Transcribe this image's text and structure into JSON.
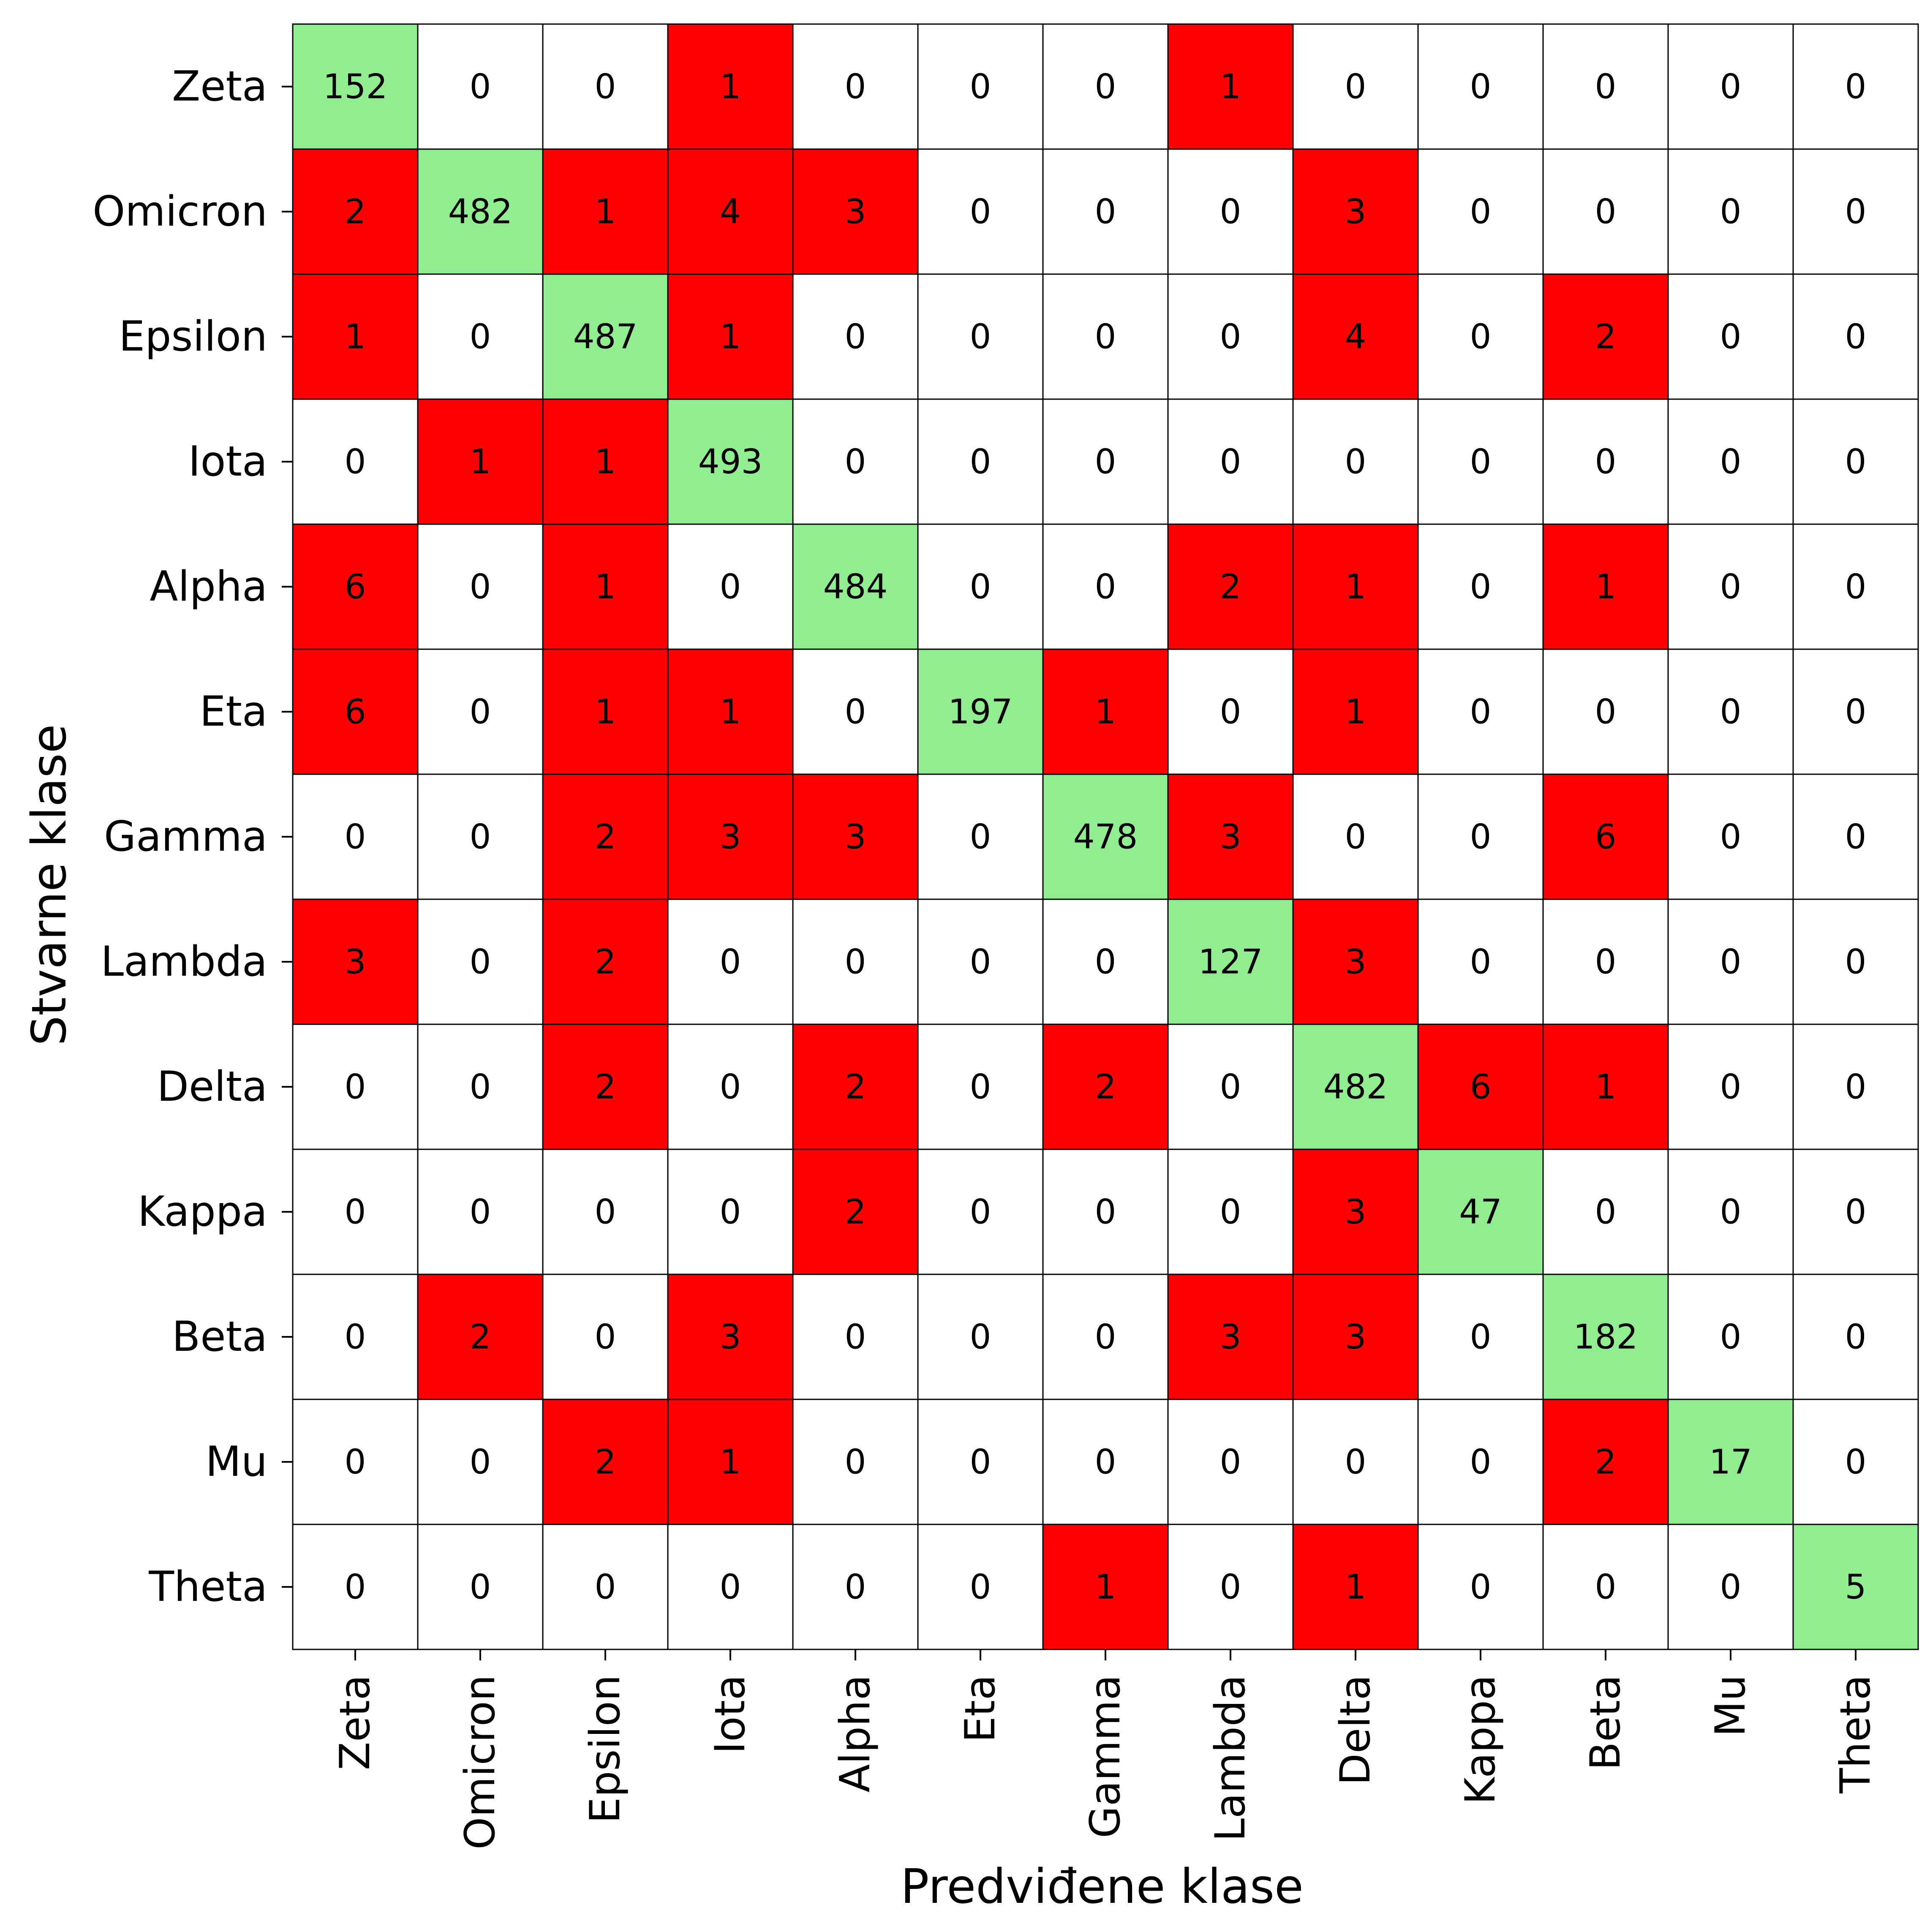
{
  "chart_data": {
    "type": "heatmap",
    "title": "",
    "xlabel": "Predviđene klase",
    "ylabel": "Stvarne klase",
    "x_categories": [
      "Zeta",
      "Omicron",
      "Epsilon",
      "Iota",
      "Alpha",
      "Eta",
      "Gamma",
      "Lambda",
      "Delta",
      "Kappa",
      "Beta",
      "Mu",
      "Theta"
    ],
    "y_categories": [
      "Zeta",
      "Omicron",
      "Epsilon",
      "Iota",
      "Alpha",
      "Eta",
      "Gamma",
      "Lambda",
      "Delta",
      "Kappa",
      "Beta",
      "Mu",
      "Theta"
    ],
    "values": [
      [
        152,
        0,
        0,
        1,
        0,
        0,
        0,
        1,
        0,
        0,
        0,
        0,
        0
      ],
      [
        2,
        482,
        1,
        4,
        3,
        0,
        0,
        0,
        3,
        0,
        0,
        0,
        0
      ],
      [
        1,
        0,
        487,
        1,
        0,
        0,
        0,
        0,
        4,
        0,
        2,
        0,
        0
      ],
      [
        0,
        1,
        1,
        493,
        0,
        0,
        0,
        0,
        0,
        0,
        0,
        0,
        0
      ],
      [
        6,
        0,
        1,
        0,
        484,
        0,
        0,
        2,
        1,
        0,
        1,
        0,
        0
      ],
      [
        6,
        0,
        1,
        1,
        0,
        197,
        1,
        0,
        1,
        0,
        0,
        0,
        0
      ],
      [
        0,
        0,
        2,
        3,
        3,
        0,
        478,
        3,
        0,
        0,
        6,
        0,
        0
      ],
      [
        3,
        0,
        2,
        0,
        0,
        0,
        0,
        127,
        3,
        0,
        0,
        0,
        0
      ],
      [
        0,
        0,
        2,
        0,
        2,
        0,
        2,
        0,
        482,
        6,
        1,
        0,
        0
      ],
      [
        0,
        0,
        0,
        0,
        2,
        0,
        0,
        0,
        3,
        47,
        0,
        0,
        0
      ],
      [
        0,
        2,
        0,
        3,
        0,
        0,
        0,
        3,
        3,
        0,
        182,
        0,
        0
      ],
      [
        0,
        0,
        2,
        1,
        0,
        0,
        0,
        0,
        0,
        0,
        2,
        17,
        0
      ],
      [
        0,
        0,
        0,
        0,
        0,
        0,
        1,
        0,
        1,
        0,
        0,
        0,
        5
      ]
    ],
    "colors": {
      "diagonal": "#90ee90",
      "misclassified": "#ff0000",
      "zero": "#ffffff",
      "grid": "#000000"
    },
    "legend": "none",
    "grid": true
  }
}
